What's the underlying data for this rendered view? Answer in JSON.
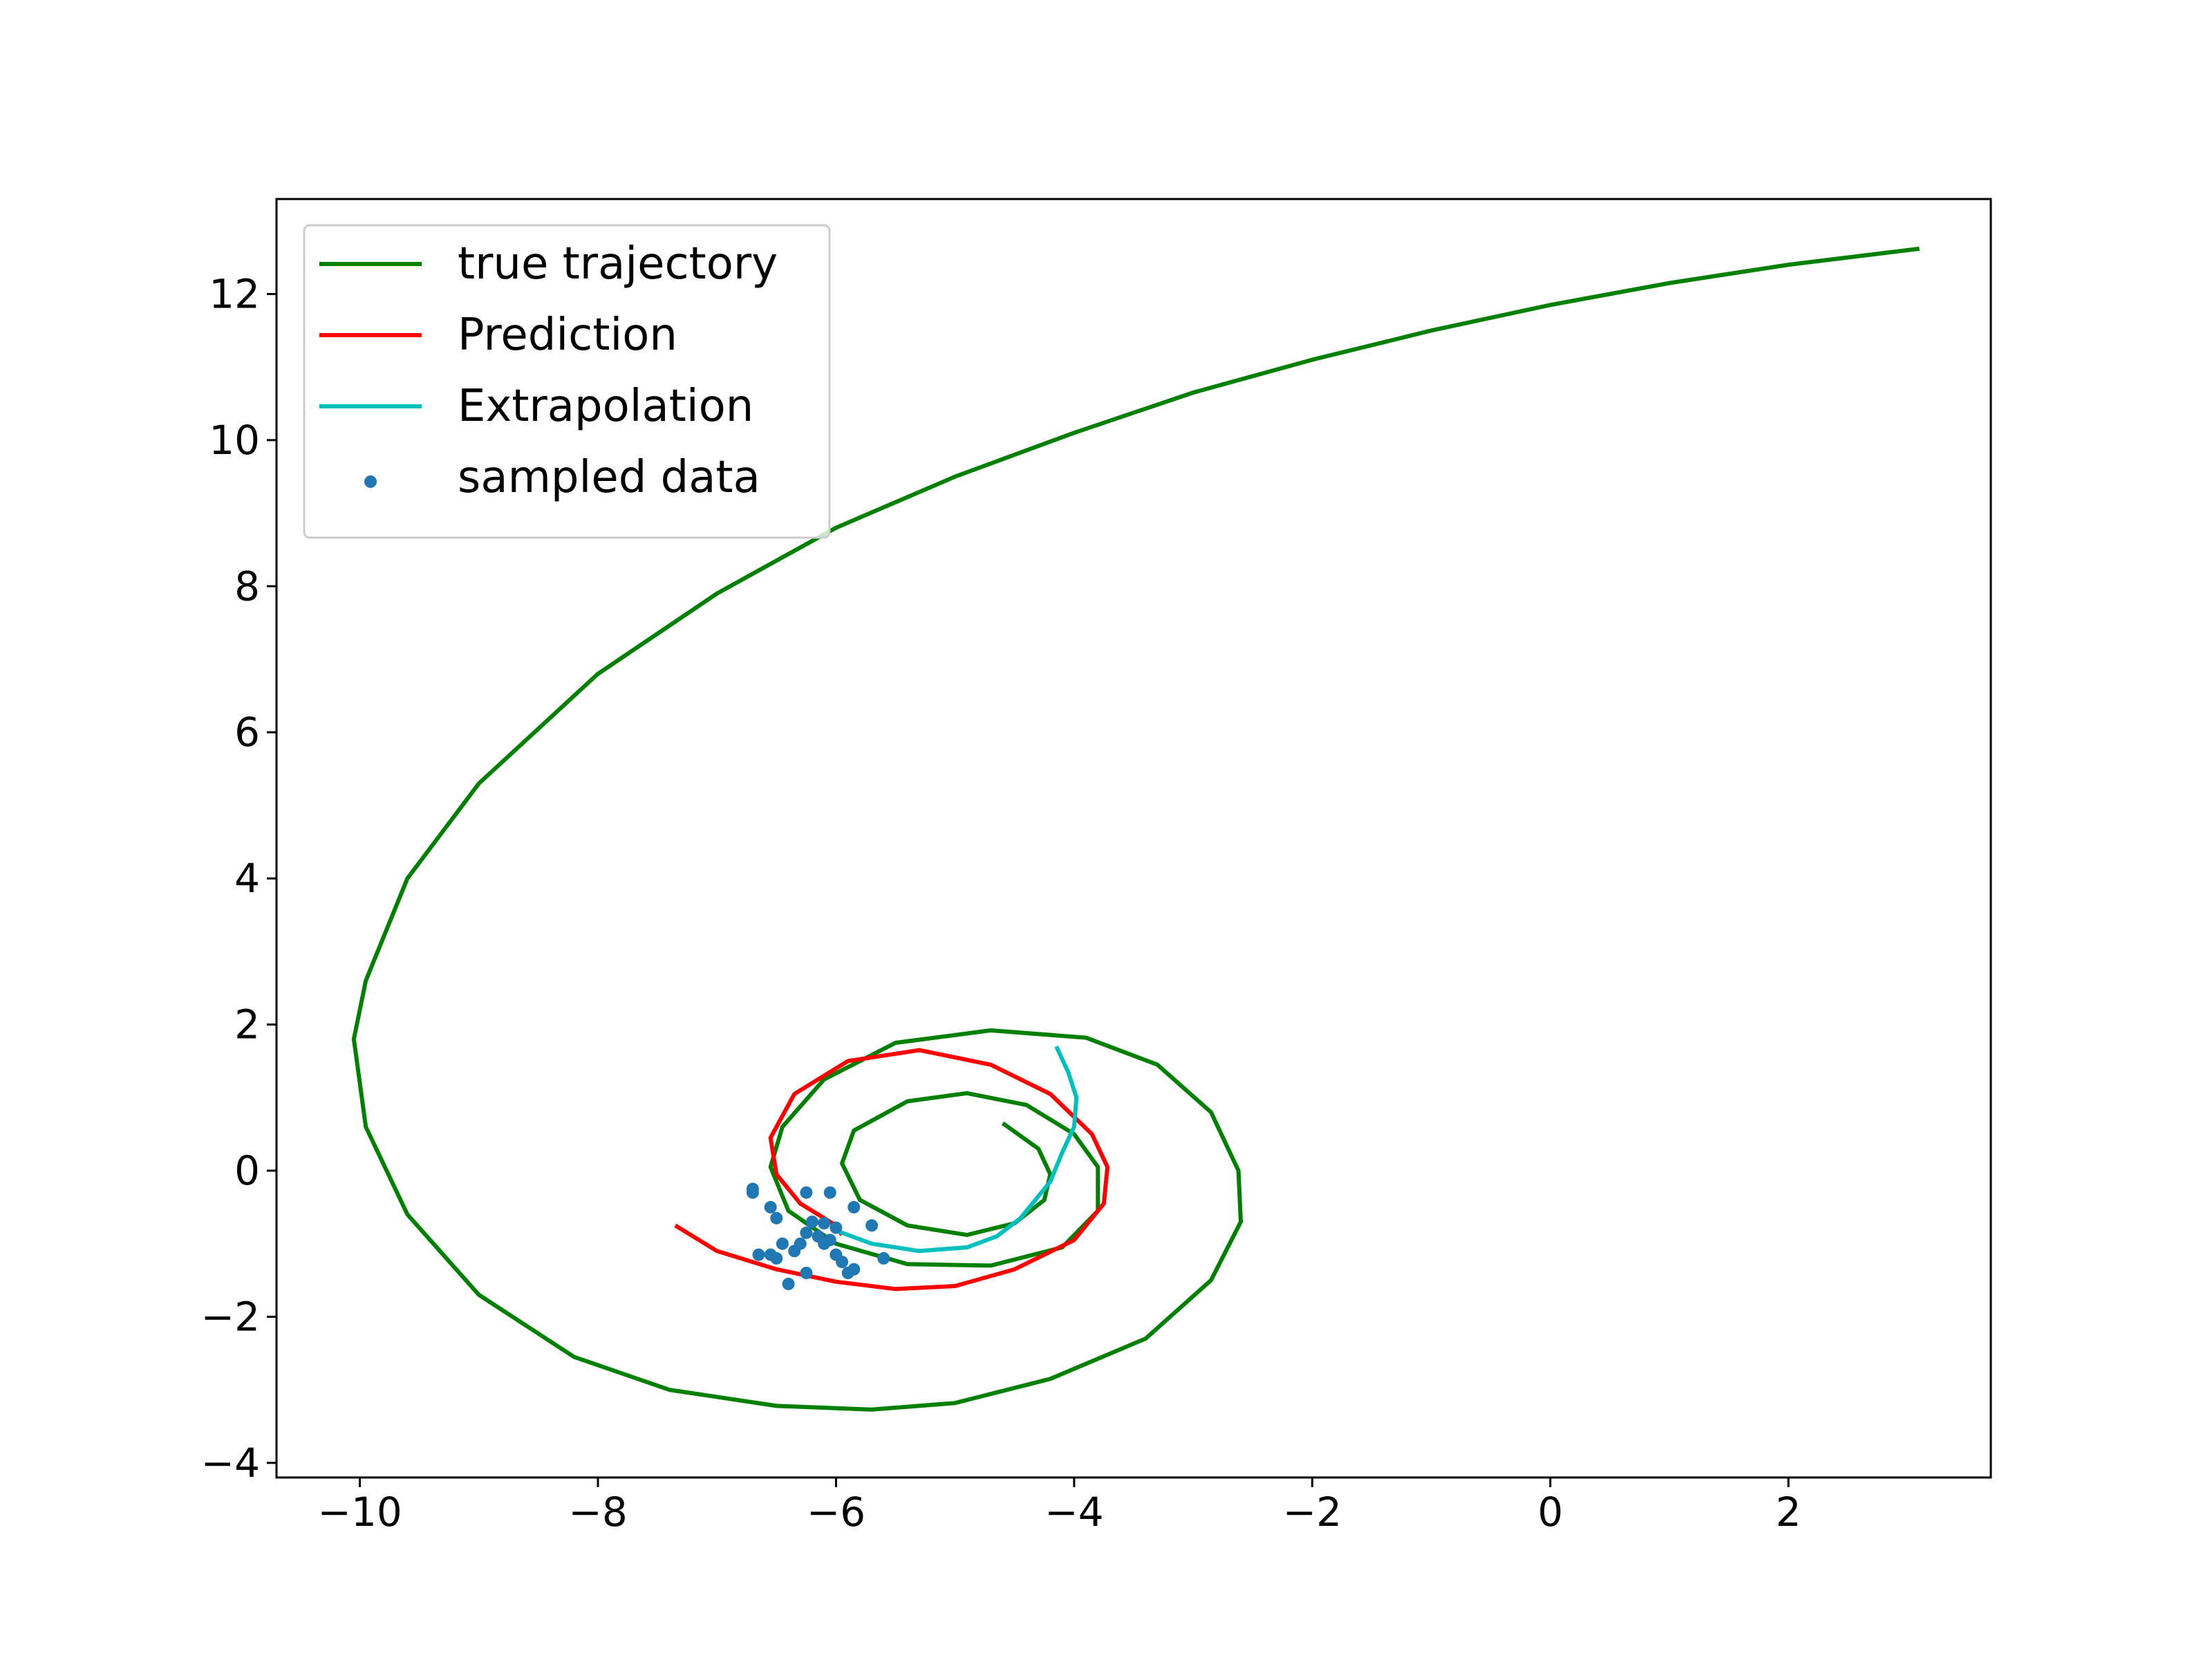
{
  "chart_data": {
    "type": "line",
    "title": "",
    "xlabel": "",
    "ylabel": "",
    "xlim": [
      -10.7,
      3.7
    ],
    "ylim": [
      -4.2,
      13.3
    ],
    "xticks": [
      -10,
      -8,
      -6,
      -4,
      -2,
      0,
      2
    ],
    "yticks": [
      -4,
      -2,
      0,
      2,
      4,
      6,
      8,
      10,
      12
    ],
    "xtick_labels": [
      "−10",
      "−8",
      "−6",
      "−4",
      "−2",
      "0",
      "2"
    ],
    "ytick_labels": [
      "−4",
      "−2",
      "0",
      "2",
      "4",
      "6",
      "8",
      "10",
      "12"
    ],
    "grid": false,
    "legend_position": "top-left",
    "series": [
      {
        "name": "true trajectory",
        "kind": "line",
        "color": "#008000",
        "points": [
          [
            3.1,
            12.62
          ],
          [
            2.0,
            12.4
          ],
          [
            1.0,
            12.15
          ],
          [
            0.0,
            11.85
          ],
          [
            -1.0,
            11.5
          ],
          [
            -2.0,
            11.1
          ],
          [
            -3.0,
            10.65
          ],
          [
            -4.0,
            10.1
          ],
          [
            -5.0,
            9.5
          ],
          [
            -6.0,
            8.8
          ],
          [
            -7.0,
            7.9
          ],
          [
            -8.0,
            6.8
          ],
          [
            -9.0,
            5.3
          ],
          [
            -9.6,
            4.0
          ],
          [
            -9.95,
            2.6
          ],
          [
            -10.05,
            1.8
          ],
          [
            -9.95,
            0.6
          ],
          [
            -9.6,
            -0.6
          ],
          [
            -9.0,
            -1.7
          ],
          [
            -8.2,
            -2.55
          ],
          [
            -7.4,
            -3.0
          ],
          [
            -6.5,
            -3.22
          ],
          [
            -5.7,
            -3.27
          ],
          [
            -5.0,
            -3.18
          ],
          [
            -4.2,
            -2.85
          ],
          [
            -3.4,
            -2.3
          ],
          [
            -2.85,
            -1.5
          ],
          [
            -2.6,
            -0.7
          ],
          [
            -2.62,
            0.0
          ],
          [
            -2.85,
            0.8
          ],
          [
            -3.3,
            1.45
          ],
          [
            -3.9,
            1.82
          ],
          [
            -4.7,
            1.92
          ],
          [
            -5.5,
            1.75
          ],
          [
            -6.1,
            1.25
          ],
          [
            -6.45,
            0.6
          ],
          [
            -6.55,
            0.05
          ],
          [
            -6.4,
            -0.55
          ],
          [
            -6.0,
            -1.0
          ],
          [
            -5.4,
            -1.28
          ],
          [
            -4.7,
            -1.3
          ],
          [
            -4.1,
            -1.05
          ],
          [
            -3.8,
            -0.55
          ],
          [
            -3.8,
            0.05
          ],
          [
            -4.0,
            0.5
          ],
          [
            -4.4,
            0.9
          ],
          [
            -4.9,
            1.06
          ],
          [
            -5.4,
            0.95
          ],
          [
            -5.85,
            0.55
          ],
          [
            -5.95,
            0.1
          ],
          [
            -5.8,
            -0.4
          ],
          [
            -5.4,
            -0.75
          ],
          [
            -4.9,
            -0.88
          ],
          [
            -4.5,
            -0.72
          ],
          [
            -4.25,
            -0.4
          ],
          [
            -4.2,
            -0.05
          ],
          [
            -4.3,
            0.3
          ],
          [
            -4.6,
            0.65
          ]
        ]
      },
      {
        "name": "Prediction",
        "kind": "line",
        "color": "#ff0000",
        "points": [
          [
            -7.35,
            -0.75
          ],
          [
            -7.0,
            -1.1
          ],
          [
            -6.5,
            -1.35
          ],
          [
            -6.0,
            -1.52
          ],
          [
            -5.5,
            -1.62
          ],
          [
            -5.0,
            -1.58
          ],
          [
            -4.5,
            -1.35
          ],
          [
            -4.0,
            -0.95
          ],
          [
            -3.75,
            -0.45
          ],
          [
            -3.72,
            0.05
          ],
          [
            -3.85,
            0.5
          ],
          [
            -4.2,
            1.05
          ],
          [
            -4.7,
            1.45
          ],
          [
            -5.3,
            1.65
          ],
          [
            -5.9,
            1.5
          ],
          [
            -6.35,
            1.05
          ],
          [
            -6.55,
            0.45
          ],
          [
            -6.5,
            -0.05
          ],
          [
            -6.3,
            -0.45
          ],
          [
            -6.0,
            -0.75
          ],
          [
            -5.95,
            -0.88
          ]
        ]
      },
      {
        "name": "Extrapolation",
        "kind": "line",
        "color": "#00bfbf",
        "points": [
          [
            -6.0,
            -0.82
          ],
          [
            -5.7,
            -1.0
          ],
          [
            -5.3,
            -1.1
          ],
          [
            -4.9,
            -1.05
          ],
          [
            -4.65,
            -0.9
          ],
          [
            -4.45,
            -0.65
          ],
          [
            -4.3,
            -0.35
          ],
          [
            -4.2,
            -0.15
          ],
          [
            -4.1,
            0.25
          ],
          [
            -4.0,
            0.6
          ],
          [
            -3.98,
            1.0
          ],
          [
            -4.05,
            1.35
          ],
          [
            -4.15,
            1.7
          ]
        ]
      },
      {
        "name": "sampled data",
        "kind": "scatter",
        "color": "#1f77b4",
        "points": [
          [
            -6.7,
            -0.25
          ],
          [
            -6.7,
            -0.3
          ],
          [
            -6.55,
            -0.5
          ],
          [
            -6.5,
            -0.65
          ],
          [
            -6.25,
            -0.3
          ],
          [
            -6.05,
            -0.3
          ],
          [
            -5.85,
            -0.5
          ],
          [
            -5.7,
            -0.75
          ],
          [
            -6.2,
            -0.7
          ],
          [
            -6.1,
            -0.72
          ],
          [
            -6.0,
            -0.78
          ],
          [
            -6.25,
            -0.85
          ],
          [
            -6.15,
            -0.9
          ],
          [
            -6.05,
            -0.95
          ],
          [
            -6.3,
            -1.0
          ],
          [
            -6.45,
            -1.0
          ],
          [
            -6.55,
            -1.15
          ],
          [
            -6.65,
            -1.15
          ],
          [
            -6.35,
            -1.1
          ],
          [
            -6.5,
            -1.2
          ],
          [
            -6.1,
            -1.0
          ],
          [
            -6.0,
            -1.15
          ],
          [
            -5.95,
            -1.25
          ],
          [
            -5.85,
            -1.35
          ],
          [
            -5.9,
            -1.4
          ],
          [
            -5.6,
            -1.2
          ],
          [
            -6.25,
            -1.4
          ],
          [
            -6.4,
            -1.55
          ]
        ]
      }
    ]
  }
}
